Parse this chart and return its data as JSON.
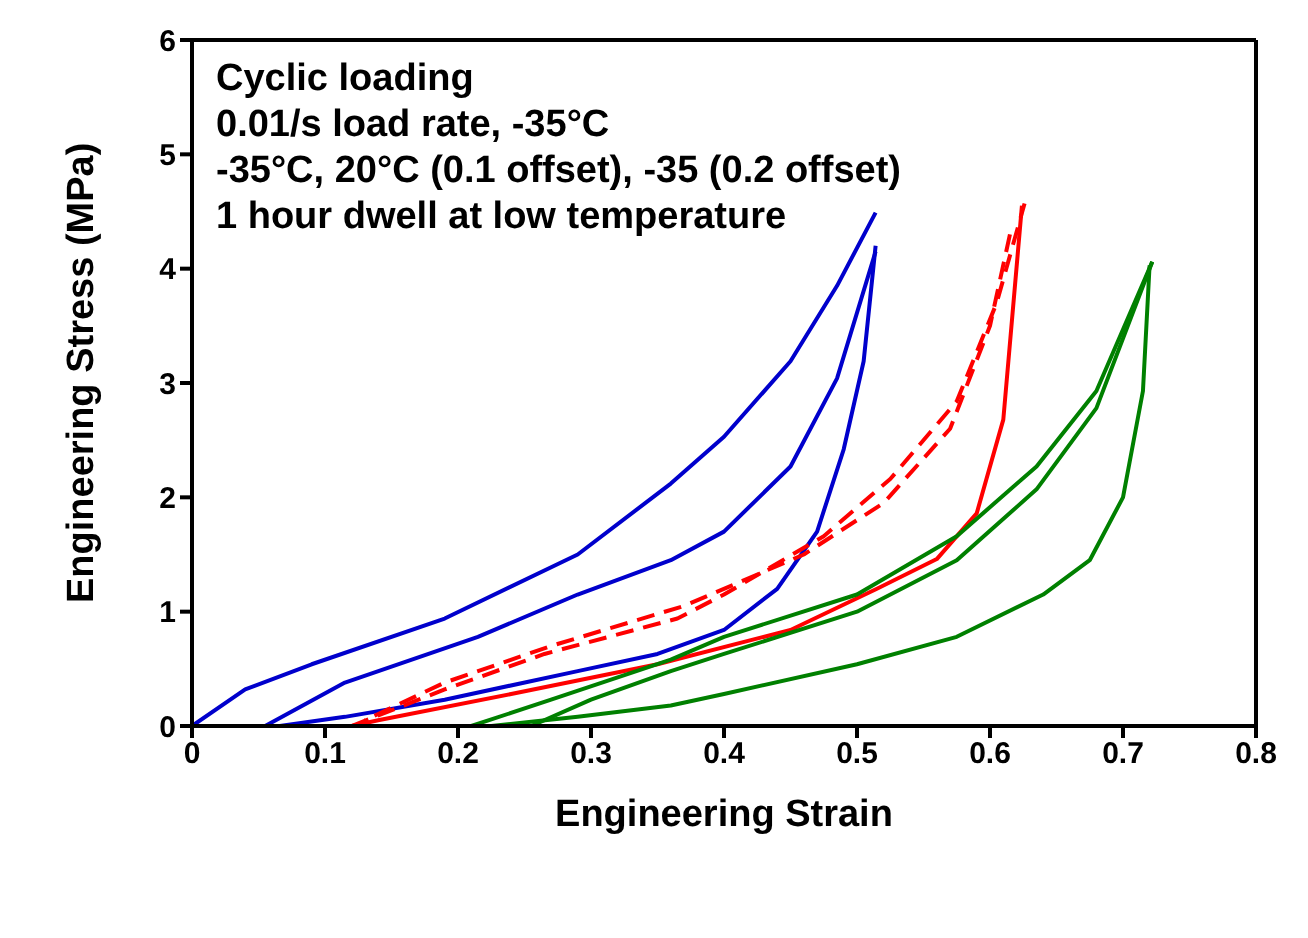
{
  "chart_data": {
    "type": "line",
    "title": "Cyclic loading",
    "annotations": [
      "0.01/s load rate, -35°C",
      "-35°C, 20°C (0.1 offset), -35 (0.2 offset)",
      "1 hour dwell at low temperature"
    ],
    "xlabel": "Engineering Strain",
    "ylabel": "Engineering Stress (MPa)",
    "xlim": [
      0,
      0.8
    ],
    "xticks": [
      0,
      0.1,
      0.2,
      0.3,
      0.4,
      0.5,
      0.6,
      0.7,
      0.8
    ],
    "ylim": [
      0,
      6
    ],
    "yticks": [
      0,
      1,
      2,
      3,
      4,
      5,
      6
    ],
    "grid": false,
    "marker": "none",
    "series": [
      {
        "color": "#0000cc",
        "line_style": "solid",
        "x": [
          0,
          0.04,
          0.09,
          0.19,
          0.29,
          0.36,
          0.4,
          0.45,
          0.485,
          0.514
        ],
        "values": [
          0,
          0.32,
          0.54,
          0.94,
          1.5,
          2.12,
          2.53,
          3.19,
          3.85,
          4.49
        ]
      },
      {
        "color": "#0000cc",
        "line_style": "solid",
        "x": [
          0.055,
          0.115,
          0.215,
          0.29,
          0.36,
          0.4,
          0.45,
          0.485,
          0.514
        ],
        "values": [
          0,
          0.38,
          0.78,
          1.15,
          1.45,
          1.7,
          2.27,
          3.04,
          4.15
        ]
      },
      {
        "color": "#0000cc",
        "line_style": "solid",
        "x": [
          0.514,
          0.505,
          0.49,
          0.47,
          0.44,
          0.4,
          0.35,
          0.29,
          0.19,
          0.115,
          0.066
        ],
        "values": [
          4.2,
          3.19,
          2.42,
          1.7,
          1.2,
          0.84,
          0.63,
          0.48,
          0.23,
          0.08,
          0
        ]
      },
      {
        "color": "#ff0000",
        "line_style": "dashed",
        "x": [
          0.12,
          0.19,
          0.265,
          0.365,
          0.4,
          0.475,
          0.525,
          0.575,
          0.605,
          0.626
        ],
        "values": [
          0,
          0.32,
          0.63,
          0.94,
          1.15,
          1.66,
          2.16,
          2.84,
          3.7,
          4.57
        ]
      },
      {
        "color": "#ff0000",
        "line_style": "dashed",
        "x": [
          0.615,
          0.6,
          0.57,
          0.52,
          0.46,
          0.37,
          0.27,
          0.19,
          0.13
        ],
        "values": [
          4.3,
          3.5,
          2.6,
          1.95,
          1.5,
          1.05,
          0.7,
          0.38,
          0.05
        ]
      },
      {
        "color": "#ff0000",
        "line_style": "solid",
        "x": [
          0.624,
          0.61,
          0.59,
          0.56,
          0.515,
          0.45,
          0.35,
          0.24,
          0.14,
          0.12
        ],
        "values": [
          4.55,
          2.68,
          1.86,
          1.46,
          1.2,
          0.84,
          0.54,
          0.28,
          0.05,
          0
        ]
      },
      {
        "color": "#008000",
        "line_style": "solid",
        "x": [
          0.21,
          0.27,
          0.36,
          0.4,
          0.5,
          0.575,
          0.635,
          0.68,
          0.722
        ],
        "values": [
          0,
          0.23,
          0.58,
          0.78,
          1.15,
          1.66,
          2.27,
          2.93,
          4.06
        ]
      },
      {
        "color": "#008000",
        "line_style": "solid",
        "x": [
          0.255,
          0.3,
          0.36,
          0.4,
          0.5,
          0.575,
          0.635,
          0.68,
          0.722
        ],
        "values": [
          0,
          0.23,
          0.48,
          0.63,
          1.0,
          1.45,
          2.07,
          2.78,
          4.06
        ]
      },
      {
        "color": "#008000",
        "line_style": "solid",
        "x": [
          0.72,
          0.715,
          0.7,
          0.675,
          0.64,
          0.575,
          0.5,
          0.4,
          0.36,
          0.29,
          0.225
        ],
        "values": [
          4.03,
          2.93,
          2.0,
          1.45,
          1.15,
          0.78,
          0.54,
          0.28,
          0.18,
          0.08,
          0
        ]
      }
    ]
  }
}
